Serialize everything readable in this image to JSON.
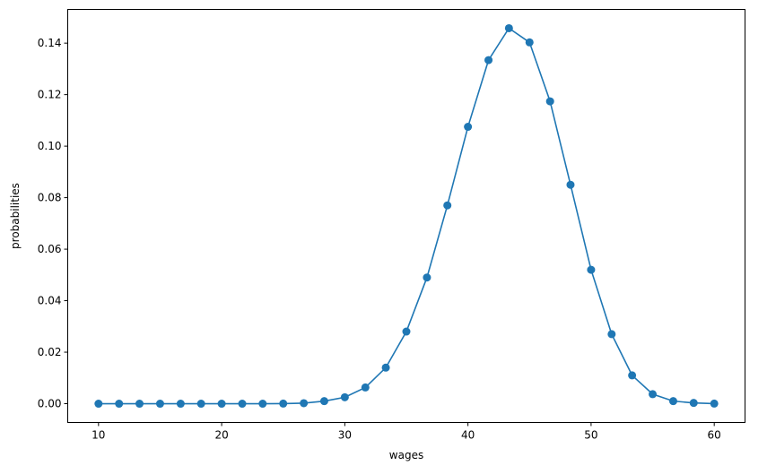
{
  "chart_data": {
    "type": "line",
    "title": "",
    "xlabel": "wages",
    "ylabel": "probabilities",
    "xlim": [
      7.5,
      62.5
    ],
    "ylim": [
      -0.0073,
      0.1531
    ],
    "xticks": [
      10,
      20,
      30,
      40,
      50,
      60
    ],
    "xtick_labels": [
      "10",
      "20",
      "30",
      "40",
      "50",
      "60"
    ],
    "yticks": [
      0,
      0.02,
      0.04,
      0.06,
      0.08,
      0.1,
      0.12,
      0.14
    ],
    "ytick_labels": [
      "0.00",
      "0.02",
      "0.04",
      "0.06",
      "0.08",
      "0.10",
      "0.12",
      "0.14"
    ],
    "grid": false,
    "marker": "circle",
    "color": "#1f77b4",
    "x": [
      10,
      11.67,
      13.33,
      15,
      16.67,
      18.33,
      20,
      21.67,
      23.33,
      25,
      26.67,
      28.33,
      30,
      31.67,
      33.33,
      35,
      36.67,
      38.33,
      40,
      41.67,
      43.33,
      45,
      46.67,
      48.33,
      50,
      51.67,
      53.33,
      55,
      56.67,
      58.33,
      60
    ],
    "y": [
      0,
      0,
      0,
      0,
      0,
      0,
      0,
      0,
      0,
      3e-05,
      0.0002,
      0.001,
      0.0025,
      0.0063,
      0.014,
      0.028,
      0.049,
      0.077,
      0.1075,
      0.1334,
      0.1458,
      0.1403,
      0.1174,
      0.085,
      0.052,
      0.027,
      0.011,
      0.0037,
      0.001,
      0.0003,
      3e-05
    ]
  }
}
